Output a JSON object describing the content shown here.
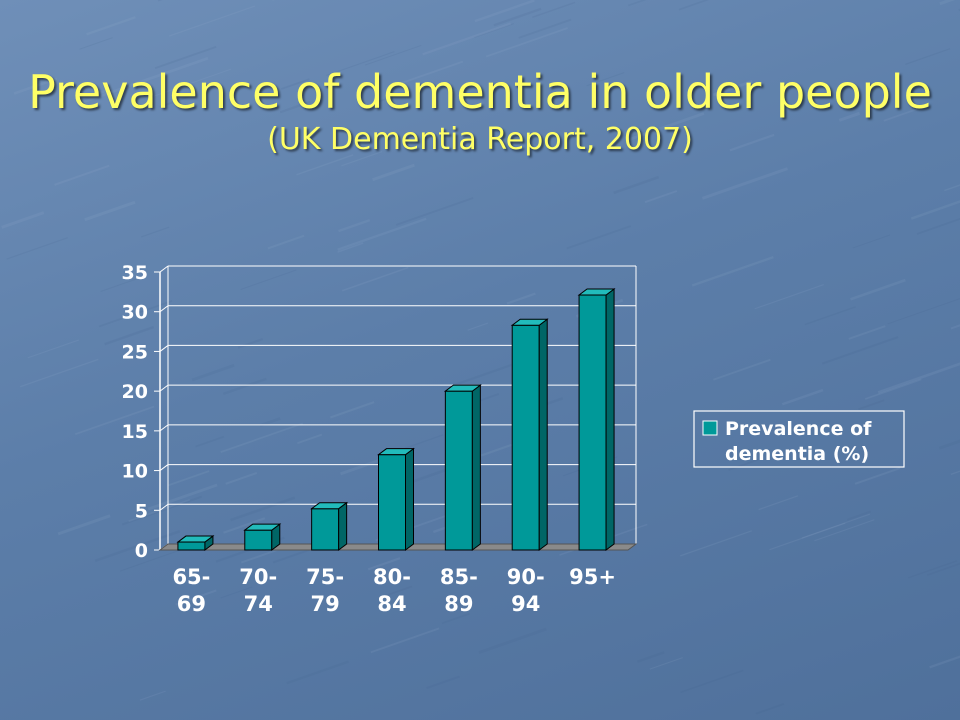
{
  "slide": {
    "title": "Prevalence of dementia in older people",
    "subtitle": "(UK Dementia Report, 2007)"
  },
  "colors": {
    "title_text": "#ffff66",
    "bar_front": "#009999",
    "bar_top": "#22bbbb",
    "bar_side": "#006666",
    "axis_text": "#ffffff"
  },
  "chart_data": {
    "type": "bar",
    "title": "",
    "xlabel": "",
    "ylabel": "",
    "ylim": [
      0,
      35
    ],
    "yticks": [
      0,
      5,
      10,
      15,
      20,
      25,
      30,
      35
    ],
    "grid": true,
    "legend_position": "right",
    "categories": [
      [
        "65-",
        "69"
      ],
      [
        "70-",
        "74"
      ],
      [
        "75-",
        "79"
      ],
      [
        "80-",
        "84"
      ],
      [
        "85-",
        "89"
      ],
      [
        "90-",
        "94"
      ],
      [
        "95+"
      ]
    ],
    "series": [
      {
        "name": [
          "Prevalence of",
          "dementia (%)"
        ],
        "values": [
          1.0,
          2.5,
          5.2,
          12.0,
          20.0,
          28.3,
          32.1
        ]
      }
    ]
  }
}
